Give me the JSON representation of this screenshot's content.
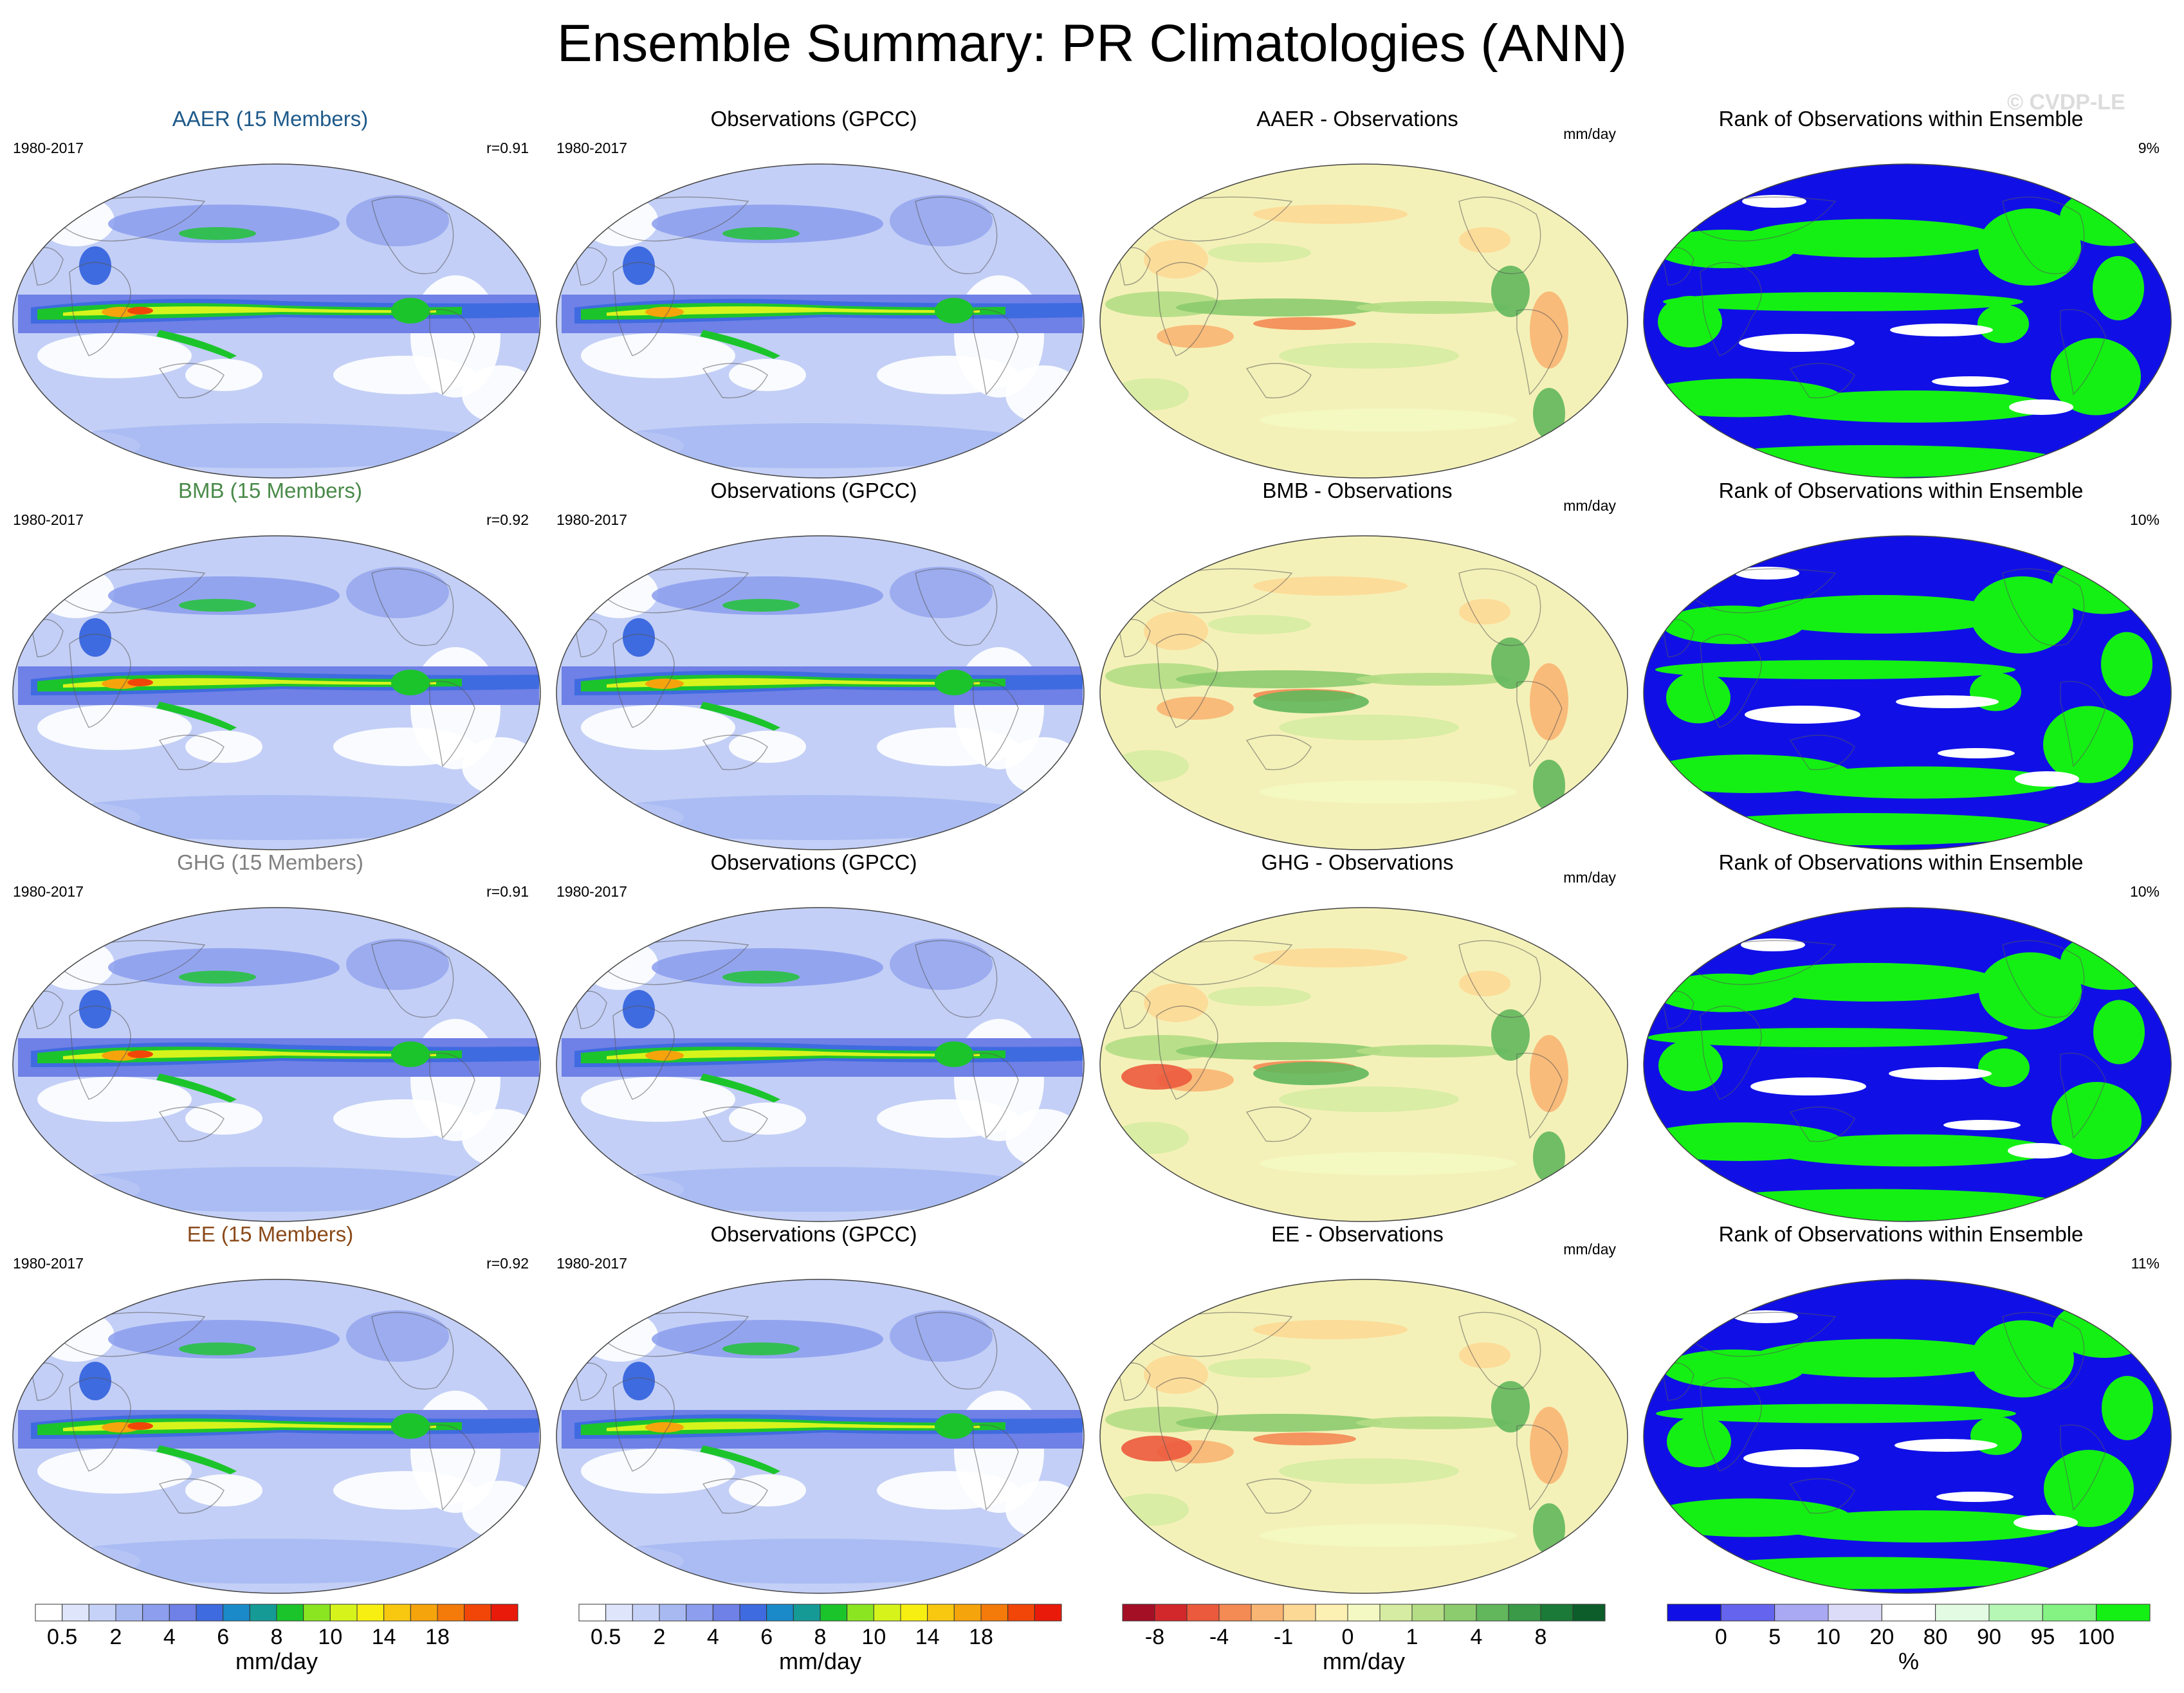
{
  "title": "Ensemble Summary: PR Climatologies (ANN)",
  "watermark": "© CVDP-LE",
  "period": "1980-2017",
  "obs_title": "Observations (GPCC)",
  "rank_title": "Rank of Observations within Ensemble",
  "diff_unit": "mm/day",
  "colors": {
    "AAER": "#1f5a8a",
    "BMB": "#4a8a4a",
    "GHG": "#808080",
    "EE": "#8b4a1a"
  },
  "rows": [
    {
      "ens_title": "AAER (15 Members)",
      "r": "r=0.91",
      "diff_title": "AAER - Observations",
      "rank_pct": "9%"
    },
    {
      "ens_title": "BMB (15 Members)",
      "r": "r=0.92",
      "diff_title": "BMB - Observations",
      "rank_pct": "10%"
    },
    {
      "ens_title": "GHG (15 Members)",
      "r": "r=0.91",
      "diff_title": "GHG - Observations",
      "rank_pct": "10%"
    },
    {
      "ens_title": "EE (15 Members)",
      "r": "r=0.92",
      "diff_title": "EE - Observations",
      "rank_pct": "11%"
    }
  ],
  "colorbars": [
    {
      "unit": "mm/day",
      "labels": [
        "0.5",
        "2",
        "4",
        "6",
        "8",
        "10",
        "14",
        "18"
      ],
      "colors": [
        "#ffffff",
        "#dfe6fb",
        "#c6d2f7",
        "#a8b9f2",
        "#8c9eed",
        "#6f80e6",
        "#3f6be0",
        "#1a8ac8",
        "#159a96",
        "#1cc42c",
        "#8be621",
        "#d6f41c",
        "#f7ef12",
        "#f8c710",
        "#f6a40c",
        "#f47a0a",
        "#f14608",
        "#ea1a0a"
      ]
    },
    {
      "unit": "mm/day",
      "labels": [
        "0.5",
        "2",
        "4",
        "6",
        "8",
        "10",
        "14",
        "18"
      ],
      "colors": [
        "#ffffff",
        "#dfe6fb",
        "#c6d2f7",
        "#a8b9f2",
        "#8c9eed",
        "#6f80e6",
        "#3f6be0",
        "#1a8ac8",
        "#159a96",
        "#1cc42c",
        "#8be621",
        "#d6f41c",
        "#f7ef12",
        "#f8c710",
        "#f6a40c",
        "#f47a0a",
        "#f14608",
        "#ea1a0a"
      ]
    },
    {
      "unit": "mm/day",
      "labels": [
        "-8",
        "-4",
        "-1",
        "0",
        "1",
        "4",
        "8"
      ],
      "colors": [
        "#a50f26",
        "#d3282b",
        "#ec5a3d",
        "#f48a54",
        "#f9b573",
        "#fdd996",
        "#fdf0b3",
        "#f4f8c2",
        "#d6eca2",
        "#b4dd85",
        "#8ccb6e",
        "#62b75c",
        "#3a9a48",
        "#1b7a37",
        "#0d5d2b"
      ]
    },
    {
      "unit": "%",
      "labels": [
        "0",
        "5",
        "10",
        "20",
        "80",
        "90",
        "95",
        "100"
      ],
      "colors": [
        "#1010e6",
        "#6464ee",
        "#a8a8f3",
        "#dcdcf8",
        "#ffffff",
        "#e2fbe2",
        "#b6f7b6",
        "#84f384",
        "#14f014"
      ]
    }
  ]
}
